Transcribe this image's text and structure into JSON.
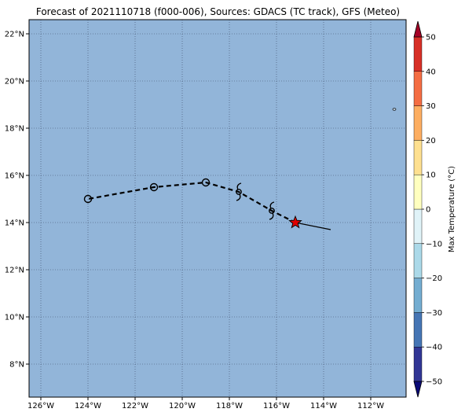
{
  "title": "Forecast of 2021110718 (f000-006), Sources: GDACS (TC track), GFS (Meteo)",
  "map": {
    "lon_range": [
      -126.5,
      -110.5
    ],
    "lat_range": [
      6.6,
      22.6
    ],
    "ocean_color": "#92b5d9",
    "grid": "dotted",
    "lon_ticks": [
      {
        "value": -126,
        "label": "126°W"
      },
      {
        "value": -124,
        "label": "124°W"
      },
      {
        "value": -122,
        "label": "122°W"
      },
      {
        "value": -120,
        "label": "120°W"
      },
      {
        "value": -118,
        "label": "118°W"
      },
      {
        "value": -116,
        "label": "116°W"
      },
      {
        "value": -114,
        "label": "114°W"
      },
      {
        "value": -112,
        "label": "112°W"
      }
    ],
    "lat_ticks": [
      {
        "value": 8,
        "label": "8°N"
      },
      {
        "value": 10,
        "label": "10°N"
      },
      {
        "value": 12,
        "label": "12°N"
      },
      {
        "value": 14,
        "label": "14°N"
      },
      {
        "value": 16,
        "label": "16°N"
      },
      {
        "value": 18,
        "label": "18°N"
      },
      {
        "value": 20,
        "label": "20°N"
      },
      {
        "value": 22,
        "label": "22°N"
      }
    ]
  },
  "track": {
    "past": [
      [
        -113.7,
        13.7
      ],
      [
        -115.2,
        14.0
      ]
    ],
    "forecast": [
      [
        -115.2,
        14.0
      ],
      [
        -116.2,
        14.5
      ],
      [
        -117.6,
        15.3
      ],
      [
        -119.0,
        15.7
      ],
      [
        -121.2,
        15.5
      ],
      [
        -124.0,
        15.0
      ]
    ],
    "current_position": [
      -115.2,
      14.0
    ],
    "cyclone_symbols": [
      [
        -116.2,
        14.5
      ],
      [
        -117.6,
        15.3
      ]
    ],
    "low_symbols": [
      [
        -119.0,
        15.7
      ],
      [
        -121.2,
        15.5
      ],
      [
        -124.0,
        15.0
      ]
    ],
    "current_marker_color": "#e00000"
  },
  "islands": [
    [
      -111.0,
      18.8
    ]
  ],
  "colorbar": {
    "label": "Max Temperature (°C)",
    "levels": [
      -50,
      -40,
      -30,
      -20,
      -10,
      0,
      10,
      20,
      30,
      40,
      50
    ],
    "tick_labels": [
      "−50",
      "−40",
      "−30",
      "−20",
      "−10",
      "0",
      "10",
      "20",
      "30",
      "40",
      "50"
    ],
    "colors": [
      "#313695",
      "#4575b4",
      "#74add1",
      "#abd9e9",
      "#e0f3f8",
      "#ffffbf",
      "#fee090",
      "#fdae61",
      "#f46d43",
      "#d73027"
    ],
    "under_color": "#0a0a78",
    "over_color": "#a50026"
  }
}
